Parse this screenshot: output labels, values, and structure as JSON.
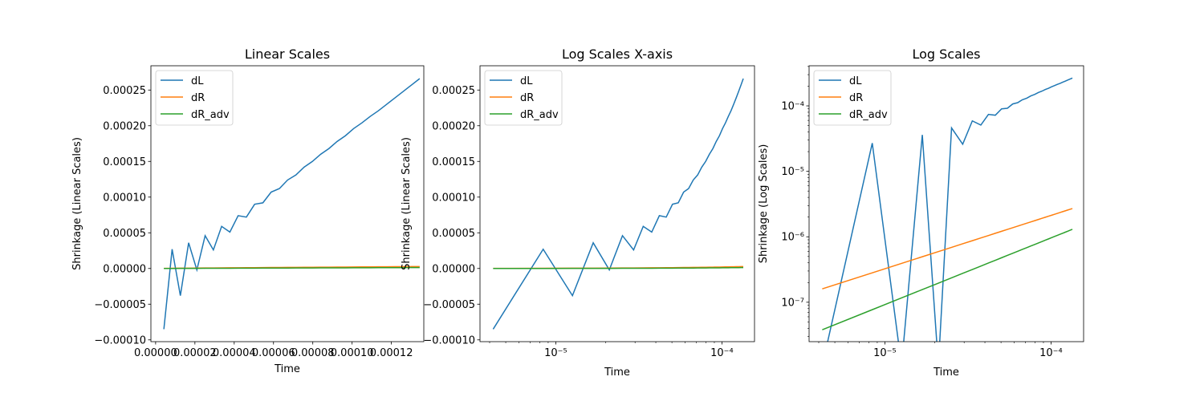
{
  "figure": {
    "background": "#ffffff"
  },
  "chart_data": [
    {
      "type": "line",
      "title": "Linear Scales",
      "xlabel": "Time",
      "ylabel": "Shrinkage (Linear Scales)",
      "xscale": "linear",
      "yscale": "linear",
      "xlim": [
        -2.4e-06,
        0.0001365
      ],
      "ylim": [
        -0.0001025,
        0.000284
      ],
      "xticks": [
        0,
        2e-05,
        4e-05,
        6e-05,
        8e-05,
        0.0001,
        0.00012
      ],
      "xtick_labels": [
        "0.00000",
        "0.00002",
        "0.00004",
        "0.00006",
        "0.00008",
        "0.00010",
        "0.00012"
      ],
      "yticks": [
        -0.0001,
        -5e-05,
        0,
        5e-05,
        0.0001,
        0.00015,
        0.0002,
        0.00025
      ],
      "ytick_labels": [
        "−0.00010",
        "−0.00005",
        "0.00000",
        "0.00005",
        "0.00010",
        "0.00015",
        "0.00020",
        "0.00025"
      ],
      "legend_position": "top-left",
      "grid": false
    },
    {
      "type": "line",
      "title": "Log Scales X-axis",
      "xlabel": "Time",
      "ylabel": "Shrinkage (Linear Scales)",
      "xscale": "log",
      "yscale": "linear",
      "xlim": [
        3.5e-06,
        0.000157
      ],
      "ylim": [
        -0.0001025,
        0.000284
      ],
      "xticks": [
        1e-05,
        0.0001
      ],
      "xtick_labels": [
        "10⁻⁵",
        "10⁻⁴"
      ],
      "yticks": [
        -0.0001,
        -5e-05,
        0,
        5e-05,
        0.0001,
        0.00015,
        0.0002,
        0.00025
      ],
      "ytick_labels": [
        "−0.00010",
        "−0.00005",
        "0.00000",
        "0.00005",
        "0.00010",
        "0.00015",
        "0.00020",
        "0.00025"
      ],
      "legend_position": "top-left",
      "grid": false
    },
    {
      "type": "line",
      "title": "Log Scales",
      "xlabel": "Time",
      "ylabel": "Shrinkage (Log Scales)",
      "xscale": "log",
      "yscale": "log",
      "xlim": [
        3.5e-06,
        0.000157
      ],
      "ylim": [
        2.5e-08,
        0.00041
      ],
      "xticks": [
        1e-05,
        0.0001
      ],
      "xtick_labels": [
        "10⁻⁵",
        "10⁻⁴"
      ],
      "yticks": [
        1e-07,
        1e-06,
        1e-05,
        0.0001
      ],
      "ytick_labels": [
        "10⁻⁷",
        "10⁻⁶",
        "10⁻⁵",
        "10⁻⁴"
      ],
      "legend_position": "top-left",
      "grid": false
    }
  ],
  "series": [
    {
      "name": "dL",
      "color": "#1f77b4",
      "x": [
        4.2e-06,
        8.4e-06,
        1.26e-05,
        1.68e-05,
        2.1e-05,
        2.52e-05,
        2.94e-05,
        3.36e-05,
        3.78e-05,
        4.2e-05,
        4.62e-05,
        5.04e-05,
        5.46e-05,
        5.88e-05,
        6.3e-05,
        6.72e-05,
        7.14e-05,
        7.56e-05,
        7.98e-05,
        8.4e-05,
        8.82e-05,
        9.24e-05,
        9.66e-05,
        0.0001008,
        0.000105,
        0.0001092,
        0.0001134,
        0.0001176,
        0.0001218,
        0.000126,
        0.0001302,
        0.0001344
      ],
      "y": [
        -8.5e-05,
        2.7e-05,
        -3.8e-05,
        3.6e-05,
        -2e-06,
        4.6e-05,
        2.6e-05,
        5.9e-05,
        5.1e-05,
        7.4e-05,
        7.2e-05,
        9e-05,
        9.2e-05,
        0.000107,
        0.000112,
        0.000124,
        0.000131,
        0.000142,
        0.00015,
        0.00016,
        0.000168,
        0.000178,
        0.000186,
        0.000196,
        0.000204,
        0.000213,
        0.000221,
        0.00023,
        0.000239,
        0.000248,
        0.000257,
        0.000266
      ]
    },
    {
      "name": "dR",
      "color": "#ff7f0e",
      "x": [
        4.2e-06,
        0.0001344
      ],
      "y": [
        1.6e-07,
        2.7e-06
      ],
      "curve": "power"
    },
    {
      "name": "dR_adv",
      "color": "#2ca02c",
      "x": [
        4.2e-06,
        0.0001344
      ],
      "y": [
        3.8e-08,
        1.3e-06
      ],
      "curve": "power"
    }
  ]
}
